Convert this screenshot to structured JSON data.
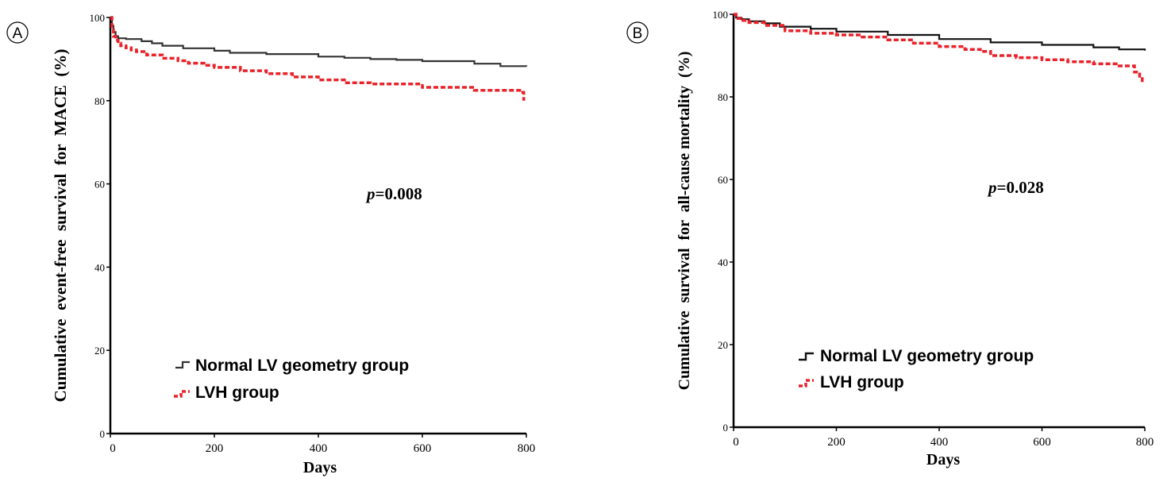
{
  "figure": {
    "panels": [
      {
        "label": "A",
        "ylabel": "Cumulative  event-free  survival  for  MACE  (%)",
        "xlabel": "Days",
        "p_prefix": "p",
        "p_value": "=0.008"
      },
      {
        "label": "B",
        "ylabel": "Cumulative  survival  for  all-cause mortality  (%)",
        "xlabel": "Days",
        "p_prefix": "p",
        "p_value": "=0.028"
      }
    ]
  },
  "chart_data": [
    {
      "type": "line",
      "title": "",
      "xlabel": "Days",
      "ylabel": "Cumulative  event-free  survival  for  MACE  (%)",
      "xlim": [
        0,
        800
      ],
      "ylim": [
        0,
        100
      ],
      "xticks": [
        0,
        200,
        400,
        600,
        800
      ],
      "yticks": [
        0,
        20,
        40,
        60,
        80,
        100
      ],
      "xtick_labels": [
        "0",
        "200",
        "400",
        "600",
        "800"
      ],
      "ytick_labels": [
        "0",
        "20",
        "40",
        "60",
        "80",
        "100"
      ],
      "annotation": "p=0.008",
      "legend": "bottom-left",
      "series": [
        {
          "name": "Normal LV geometry group",
          "color": "#333333",
          "style": "step-solid",
          "x": [
            0,
            3,
            6,
            10,
            15,
            30,
            60,
            80,
            100,
            140,
            200,
            230,
            300,
            400,
            450,
            500,
            550,
            600,
            700,
            750,
            800
          ],
          "y": [
            100,
            98,
            96.5,
            95.5,
            95,
            94.8,
            94.3,
            93.8,
            93.2,
            92.6,
            92,
            91.5,
            91.2,
            90.6,
            90.3,
            90,
            89.8,
            89.5,
            88.9,
            88.3,
            88.2
          ]
        },
        {
          "name": "LVH group",
          "color": "#e8232b",
          "style": "step-dashed",
          "x": [
            0,
            3,
            6,
            10,
            15,
            20,
            30,
            40,
            50,
            70,
            100,
            130,
            150,
            180,
            200,
            250,
            300,
            350,
            400,
            450,
            500,
            600,
            700,
            790,
            795
          ],
          "y": [
            100,
            97.5,
            95.5,
            94.5,
            93.8,
            93.2,
            92.7,
            92.2,
            91.8,
            91,
            90.2,
            89.6,
            89,
            88.5,
            88,
            87.2,
            86.5,
            85.7,
            85,
            84.3,
            84,
            83.2,
            82.5,
            82,
            80
          ]
        }
      ]
    },
    {
      "type": "line",
      "title": "",
      "xlabel": "Days",
      "ylabel": "Cumulative  survival  for  all-cause mortality  (%)",
      "xlim": [
        0,
        800
      ],
      "ylim": [
        0,
        100
      ],
      "xticks": [
        0,
        200,
        400,
        600,
        800
      ],
      "yticks": [
        0,
        20,
        40,
        60,
        80,
        100
      ],
      "xtick_labels": [
        "0",
        "200",
        "400",
        "600",
        "800"
      ],
      "ytick_labels": [
        "0",
        "20",
        "40",
        "60",
        "80",
        "100"
      ],
      "annotation": "p=0.028",
      "legend": "bottom-left",
      "series": [
        {
          "name": "Normal LV geometry group",
          "color": "#111111",
          "style": "step-solid",
          "x": [
            0,
            5,
            15,
            30,
            60,
            90,
            150,
            200,
            300,
            400,
            500,
            600,
            700,
            750,
            800
          ],
          "y": [
            100,
            99.2,
            98.8,
            98.3,
            97.8,
            97,
            96.5,
            95.8,
            95,
            94,
            93.2,
            92.6,
            92,
            91.5,
            91.2
          ],
          "annotation_note": ""
        },
        {
          "name": "LVH group",
          "color": "#e8232b",
          "style": "step-dashed",
          "x": [
            0,
            5,
            15,
            30,
            60,
            100,
            150,
            200,
            250,
            300,
            350,
            400,
            450,
            480,
            500,
            550,
            600,
            650,
            700,
            750,
            780,
            790,
            795
          ],
          "y": [
            100,
            99,
            98.5,
            98,
            97.3,
            96,
            95.4,
            95,
            94.5,
            93.8,
            93,
            92.2,
            91.5,
            91,
            90,
            89.5,
            89,
            88.5,
            88,
            87.5,
            86,
            85,
            83.5
          ]
        }
      ]
    }
  ]
}
